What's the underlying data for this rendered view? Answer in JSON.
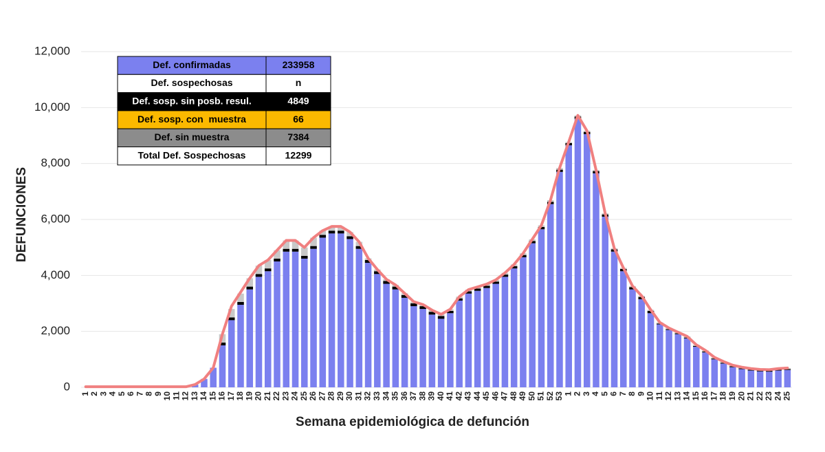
{
  "chart_data": {
    "type": "bar",
    "xlabel": "Semana epidemiológica de defunción",
    "ylabel": "DEFUNCIONES",
    "ylim": [
      0,
      12000
    ],
    "yticks": [
      0,
      {
        "value": 2000,
        "label": "2,000"
      },
      {
        "value": 4000,
        "label": "4,000"
      },
      {
        "value": 6000,
        "label": "6,000"
      },
      {
        "value": 8000,
        "label": "8,000"
      },
      {
        "value": 10000,
        "label": "10,000"
      },
      {
        "value": 12000,
        "label": "12,000"
      }
    ],
    "grid": true,
    "categories": [
      "1",
      "2",
      "3",
      "4",
      "5",
      "6",
      "7",
      "8",
      "9",
      "10",
      "11",
      "12",
      "13",
      "14",
      "15",
      "16",
      "17",
      "18",
      "19",
      "20",
      "21",
      "22",
      "23",
      "24",
      "25",
      "26",
      "27",
      "28",
      "29",
      "30",
      "31",
      "32",
      "33",
      "34",
      "35",
      "36",
      "37",
      "38",
      "39",
      "40",
      "41",
      "42",
      "43",
      "44",
      "45",
      "46",
      "47",
      "48",
      "49",
      "50",
      "51",
      "52",
      "53",
      "1",
      "2",
      "3",
      "4",
      "5",
      "6",
      "7",
      "8",
      "9",
      "10",
      "11",
      "12",
      "13",
      "14",
      "15",
      "16",
      "17",
      "18",
      "19",
      "20",
      "21",
      "22",
      "23",
      "24",
      "25"
    ],
    "series": [
      {
        "color": "#7b80ef",
        "values": [
          0,
          0,
          0,
          0,
          0,
          0,
          0,
          0,
          0,
          0,
          0,
          0,
          100,
          300,
          700,
          1500,
          2400,
          2950,
          3500,
          3950,
          4150,
          4500,
          4850,
          4850,
          4600,
          4950,
          5350,
          5500,
          5500,
          5300,
          4950,
          4450,
          4050,
          3700,
          3500,
          3200,
          2900,
          2800,
          2600,
          2450,
          2650,
          3100,
          3350,
          3450,
          3550,
          3700,
          3950,
          4250,
          4650,
          5150,
          5650,
          6550,
          7700,
          8650,
          9600,
          9050,
          7650,
          6100,
          4850,
          4150,
          3500,
          3150,
          2650,
          2250,
          2050,
          1900,
          1750,
          1450,
          1250,
          1000,
          850,
          720,
          650,
          600,
          570,
          560,
          600,
          620
        ]
      },
      {
        "color": "#000000",
        "values": [
          0,
          0,
          0,
          0,
          0,
          0,
          0,
          0,
          0,
          0,
          0,
          0,
          0,
          0,
          0,
          100,
          100,
          100,
          100,
          100,
          100,
          100,
          100,
          100,
          100,
          100,
          100,
          100,
          100,
          100,
          100,
          100,
          100,
          100,
          100,
          100,
          100,
          100,
          100,
          100,
          80,
          80,
          80,
          80,
          80,
          80,
          80,
          80,
          80,
          80,
          80,
          80,
          80,
          80,
          80,
          80,
          80,
          80,
          80,
          80,
          80,
          80,
          80,
          30,
          30,
          30,
          30,
          30,
          30,
          30,
          30,
          30,
          30,
          30,
          30,
          30,
          30,
          30
        ]
      },
      {
        "color": "#c8c8c8",
        "values": [
          0,
          0,
          0,
          0,
          0,
          0,
          0,
          0,
          0,
          0,
          0,
          0,
          0,
          0,
          0,
          300,
          300,
          300,
          300,
          300,
          300,
          300,
          300,
          300,
          300,
          300,
          150,
          150,
          150,
          150,
          150,
          60,
          60,
          60,
          60,
          60,
          60,
          60,
          60,
          60,
          60,
          60,
          60,
          60,
          60,
          60,
          60,
          60,
          60,
          60,
          60,
          60,
          60,
          40,
          40,
          40,
          40,
          40,
          40,
          40,
          40,
          40,
          40,
          40,
          40,
          40,
          40,
          40,
          40,
          40,
          40,
          40,
          40,
          40,
          40,
          40,
          40,
          40
        ]
      }
    ],
    "line": {
      "color": "#f08080",
      "values": [
        20,
        20,
        20,
        20,
        20,
        20,
        20,
        20,
        20,
        20,
        20,
        20,
        100,
        300,
        700,
        1900,
        2900,
        3400,
        3900,
        4350,
        4550,
        4900,
        5250,
        5250,
        5000,
        5350,
        5600,
        5750,
        5750,
        5550,
        5200,
        4610,
        4210,
        3860,
        3660,
        3360,
        3060,
        2960,
        2760,
        2610,
        2790,
        3240,
        3490,
        3590,
        3690,
        3840,
        4090,
        4390,
        4790,
        5290,
        5790,
        6690,
        7840,
        8770,
        9720,
        9170,
        7770,
        6220,
        4970,
        4270,
        3620,
        3270,
        2770,
        2320,
        2120,
        1970,
        1820,
        1520,
        1320,
        1070,
        920,
        790,
        720,
        670,
        640,
        630,
        670,
        690
      ]
    },
    "table": {
      "rows": [
        {
          "label": "Def. confirmadas",
          "value": "233958",
          "color": "#7b80ef",
          "text": "#000000"
        },
        {
          "label": "Def. sospechosas",
          "value": "n",
          "color": "#ffffff",
          "text": "#000000"
        },
        {
          "label": "Def. sosp. sin posb. resul.",
          "value": "4849",
          "color": "#000000",
          "text": "#ffffff"
        },
        {
          "label": "Def. sosp. con  muestra",
          "value": "66",
          "color": "#fbb900",
          "text": "#000000"
        },
        {
          "label": "Def. sin muestra",
          "value": "7384",
          "color": "#8c8c8c",
          "text": "#000000"
        },
        {
          "label": "Total Def. Sospechosas",
          "value": "12299",
          "color": "#ffffff",
          "text": "#000000"
        }
      ]
    }
  }
}
